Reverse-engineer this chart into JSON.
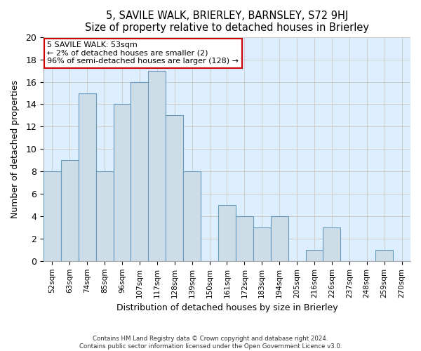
{
  "title": "5, SAVILE WALK, BRIERLEY, BARNSLEY, S72 9HJ",
  "subtitle": "Size of property relative to detached houses in Brierley",
  "xlabel": "Distribution of detached houses by size in Brierley",
  "ylabel": "Number of detached properties",
  "footer_line1": "Contains HM Land Registry data © Crown copyright and database right 2024.",
  "footer_line2": "Contains public sector information licensed under the Open Government Licence v3.0.",
  "categories": [
    "52sqm",
    "63sqm",
    "74sqm",
    "85sqm",
    "96sqm",
    "107sqm",
    "117sqm",
    "128sqm",
    "139sqm",
    "150sqm",
    "161sqm",
    "172sqm",
    "183sqm",
    "194sqm",
    "205sqm",
    "216sqm",
    "226sqm",
    "237sqm",
    "248sqm",
    "259sqm",
    "270sqm"
  ],
  "values": [
    8,
    9,
    15,
    8,
    14,
    16,
    17,
    13,
    8,
    0,
    5,
    4,
    3,
    4,
    0,
    1,
    3,
    0,
    0,
    1,
    0
  ],
  "bar_color": "#ccdde8",
  "bar_edge_color": "#6699bb",
  "ylim": [
    0,
    20
  ],
  "yticks": [
    0,
    2,
    4,
    6,
    8,
    10,
    12,
    14,
    16,
    18,
    20
  ],
  "annotation_box_text_line1": "5 SAVILE WALK: 53sqm",
  "annotation_box_text_line2": "← 2% of detached houses are smaller (2)",
  "annotation_box_text_line3": "96% of semi-detached houses are larger (128) →",
  "annotation_box_color": "#ffffff",
  "annotation_box_edge_color": "#cc0000",
  "grid_color": "#cccccc",
  "background_color": "#ddeeff"
}
